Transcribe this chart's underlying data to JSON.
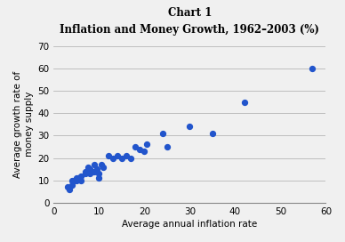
{
  "title_line1": "Chart 1",
  "title_line2": "Inflation and Money Growth, 1962–2003 (%)",
  "xlabel": "Average annual inflation rate",
  "ylabel": "Average growth rate of\nmoney supply",
  "xlim": [
    0,
    60
  ],
  "ylim": [
    0,
    70
  ],
  "xticks": [
    0,
    10,
    20,
    30,
    40,
    50,
    60
  ],
  "yticks": [
    0,
    10,
    20,
    30,
    40,
    50,
    60,
    70
  ],
  "dot_color": "#2255cc",
  "background_color": "#f0f0f0",
  "x_data": [
    3,
    3.5,
    4,
    4,
    4.5,
    5,
    5,
    5.5,
    6,
    6,
    7,
    7,
    7.5,
    8,
    8,
    8.5,
    9,
    9,
    9.5,
    10,
    10,
    10.5,
    11,
    12,
    13,
    14,
    15,
    16,
    17,
    18,
    19,
    20,
    20.5,
    24,
    25,
    30,
    35,
    42,
    57
  ],
  "y_data": [
    7,
    6,
    8,
    10,
    10,
    10,
    11,
    11,
    12,
    10,
    13,
    14,
    16,
    13,
    15,
    14,
    14,
    17,
    15,
    11,
    13,
    17,
    16,
    21,
    20,
    21,
    20,
    21,
    20,
    25,
    24,
    23,
    26,
    31,
    25,
    34,
    31,
    45,
    60
  ]
}
